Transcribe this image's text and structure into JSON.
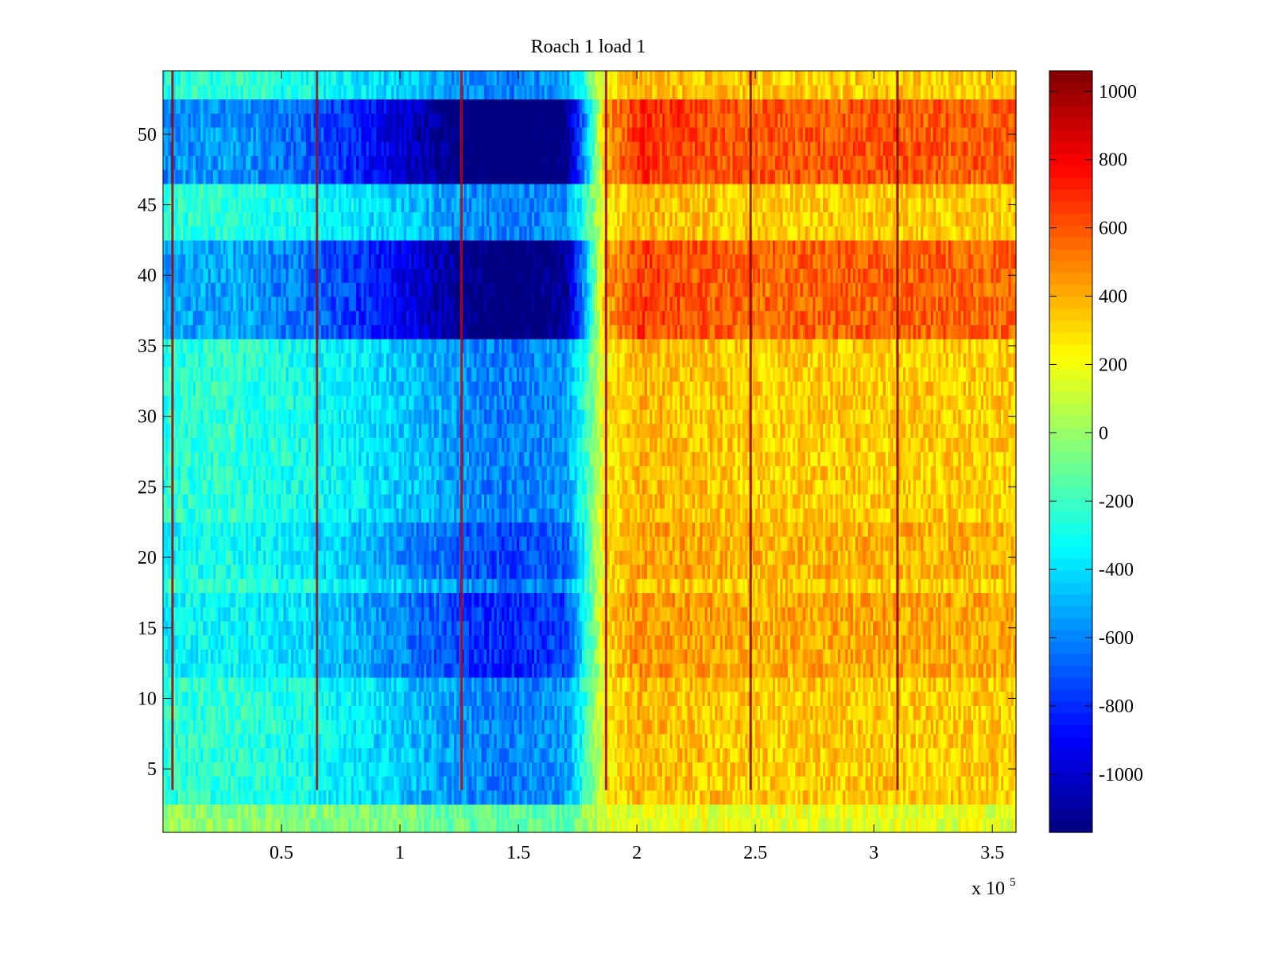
{
  "chart_data": {
    "type": "heatmap",
    "title": "Roach 1 load 1",
    "xlabel": "",
    "ylabel": "",
    "x_exponent_label": "x 10",
    "x_exponent_power": "5",
    "xlim": [
      0.0,
      3.6
    ],
    "ylim": [
      0.5,
      54.5
    ],
    "x_ticks": [
      {
        "value": 0.5,
        "label": "0.5"
      },
      {
        "value": 1.0,
        "label": "1"
      },
      {
        "value": 1.5,
        "label": "1.5"
      },
      {
        "value": 2.0,
        "label": "2"
      },
      {
        "value": 2.5,
        "label": "2.5"
      },
      {
        "value": 3.0,
        "label": "3"
      },
      {
        "value": 3.5,
        "label": "3.5"
      }
    ],
    "y_ticks": [
      {
        "value": 5,
        "label": "5"
      },
      {
        "value": 10,
        "label": "10"
      },
      {
        "value": 15,
        "label": "15"
      },
      {
        "value": 20,
        "label": "20"
      },
      {
        "value": 25,
        "label": "25"
      },
      {
        "value": 30,
        "label": "30"
      },
      {
        "value": 35,
        "label": "35"
      },
      {
        "value": 40,
        "label": "40"
      },
      {
        "value": 45,
        "label": "45"
      },
      {
        "value": 50,
        "label": "50"
      }
    ],
    "rows": 54,
    "colorbar": {
      "colormap": "jet",
      "range": [
        -1170,
        1060
      ],
      "ticks": [
        {
          "value": 1000,
          "label": "1000"
        },
        {
          "value": 800,
          "label": "800"
        },
        {
          "value": 600,
          "label": "600"
        },
        {
          "value": 400,
          "label": "400"
        },
        {
          "value": 200,
          "label": "200"
        },
        {
          "value": 0,
          "label": "0"
        },
        {
          "value": -200,
          "label": "-200"
        },
        {
          "value": -400,
          "label": "-400"
        },
        {
          "value": -600,
          "label": "-600"
        },
        {
          "value": -800,
          "label": "-800"
        },
        {
          "value": -1000,
          "label": "-1000"
        }
      ]
    },
    "column_profile": [
      {
        "x": 0.0,
        "value": -250
      },
      {
        "x": 0.3,
        "value": -230
      },
      {
        "x": 0.6,
        "value": -300
      },
      {
        "x": 0.85,
        "value": -380
      },
      {
        "x": 1.0,
        "value": -450
      },
      {
        "x": 1.25,
        "value": -560
      },
      {
        "x": 1.45,
        "value": -620
      },
      {
        "x": 1.7,
        "value": -560
      },
      {
        "x": 1.78,
        "value": -250
      },
      {
        "x": 1.87,
        "value": 250
      },
      {
        "x": 2.0,
        "value": 380
      },
      {
        "x": 2.5,
        "value": 330
      },
      {
        "x": 3.0,
        "value": 340
      },
      {
        "x": 3.6,
        "value": 330
      }
    ],
    "row_amplification": [
      {
        "y_range": [
          36,
          42
        ],
        "factor": 1.9
      },
      {
        "y_range": [
          47,
          52
        ],
        "factor": 2.0
      },
      {
        "y_range": [
          12,
          17
        ],
        "factor": 1.3
      },
      {
        "y_range": [
          19,
          22
        ],
        "factor": 1.2
      },
      {
        "y_range": [
          1,
          2
        ],
        "factor": 0.3
      }
    ],
    "artifact_columns": [
      {
        "x": 0.04,
        "value": 1000
      },
      {
        "x": 0.65,
        "value": 950
      },
      {
        "x": 1.26,
        "value": 900
      },
      {
        "x": 1.87,
        "value": 1000
      },
      {
        "x": 2.48,
        "value": 1050
      },
      {
        "x": 3.1,
        "value": 1060
      }
    ]
  }
}
